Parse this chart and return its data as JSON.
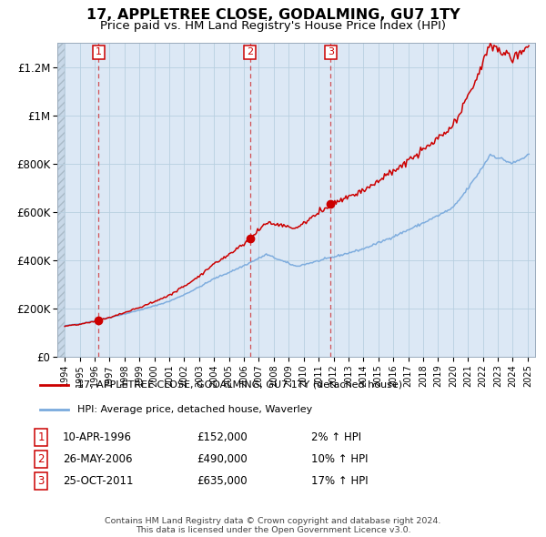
{
  "title": "17, APPLETREE CLOSE, GODALMING, GU7 1TY",
  "subtitle": "Price paid vs. HM Land Registry's House Price Index (HPI)",
  "title_fontsize": 11.5,
  "subtitle_fontsize": 9.5,
  "red_line_label": "17, APPLETREE CLOSE, GODALMING, GU7 1TY (detached house)",
  "blue_line_label": "HPI: Average price, detached house, Waverley",
  "sale_points": [
    {
      "year": 1996.27,
      "price": 152000,
      "label": "1",
      "date": "10-APR-1996",
      "pct": "2%"
    },
    {
      "year": 2006.4,
      "price": 490000,
      "label": "2",
      "date": "26-MAY-2006",
      "pct": "10%"
    },
    {
      "year": 2011.81,
      "price": 635000,
      "label": "3",
      "date": "25-OCT-2011",
      "pct": "17%"
    }
  ],
  "footer_line1": "Contains HM Land Registry data © Crown copyright and database right 2024.",
  "footer_line2": "This data is licensed under the Open Government Licence v3.0.",
  "red_color": "#cc0000",
  "blue_color": "#7aaadd",
  "plot_bg_color": "#dce8f5",
  "background_color": "#ffffff",
  "grid_color": "#b8cfe0",
  "ylim": [
    0,
    1300000
  ],
  "xlim_start": 1993.5,
  "xlim_end": 2025.5,
  "hatch_end": 1994.0
}
